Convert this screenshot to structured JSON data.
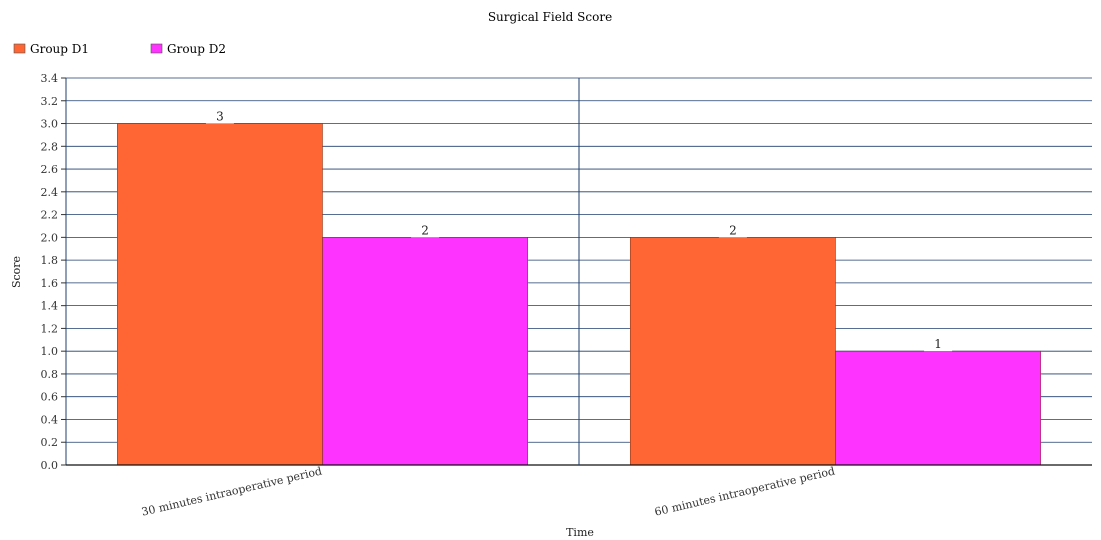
{
  "chart_data": {
    "type": "bar",
    "title": "Surgical Field Score",
    "xlabel": "Time",
    "ylabel": "Score",
    "categories": [
      "30 minutes intraoperative period",
      "60 minutes intraoperative period"
    ],
    "series": [
      {
        "name": "Group D1",
        "color": "#ff6633",
        "values": [
          3,
          2
        ]
      },
      {
        "name": "Group D2",
        "color": "#ff33ff",
        "values": [
          2,
          1
        ]
      }
    ],
    "ylim": [
      0,
      3.4
    ],
    "yticks": [
      "0.0",
      "0.2",
      "0.4",
      "0.6",
      "0.8",
      "1.0",
      "1.2",
      "1.4",
      "1.6",
      "1.8",
      "2.0",
      "2.2",
      "2.4",
      "2.6",
      "2.8",
      "3.0",
      "3.2",
      "3.4"
    ],
    "data_labels": [
      [
        "3",
        "2"
      ],
      [
        "2",
        "1"
      ]
    ],
    "grid": true,
    "legend_position": "top-left"
  }
}
